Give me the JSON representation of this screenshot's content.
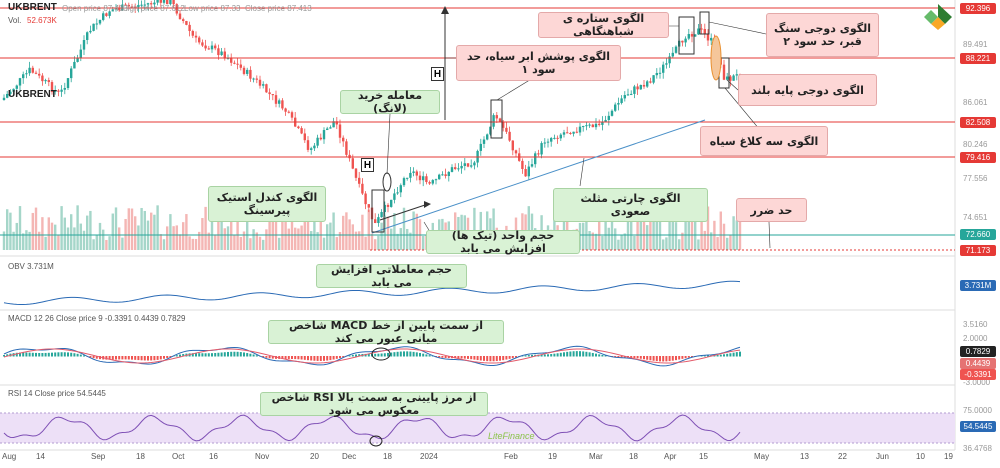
{
  "header": {
    "symbol": "UKBRENT",
    "open": "Open price  87.413",
    "high": "High price  87.612",
    "low": "Low price  87.33",
    "close": "Close price  87.413",
    "vol_label": "Vol.",
    "vol_value": "52.673K"
  },
  "price_axis": {
    "ticks": [
      "92.396",
      "89.491",
      "88.221",
      "86.061",
      "82.508",
      "80.246",
      "79.416",
      "77.556",
      "74.651",
      "72.660",
      "71.173"
    ],
    "highlight_tags": [
      {
        "text": "92.396",
        "color": "#e53935"
      },
      {
        "text": "88.221",
        "color": "#e53935"
      },
      {
        "text": "82.508",
        "color": "#e53935"
      },
      {
        "text": "79.416",
        "color": "#e53935"
      },
      {
        "text": "72.660",
        "color": "#26a69a"
      },
      {
        "text": "71.173",
        "color": "#e53935"
      }
    ]
  },
  "obv": {
    "label": "OBV 3.731M",
    "value_tag": "3.731M"
  },
  "macd": {
    "label": "MACD 12 26 Close price 9 -0.3391 0.4439 0.7829",
    "ticks": [
      "3.5160",
      "2.0000",
      "-1.5000",
      "-3.0000"
    ],
    "tags": [
      {
        "text": "0.7829",
        "color": "#222"
      },
      {
        "text": "0.4439",
        "color": "#e57373"
      },
      {
        "text": "-0.3391",
        "color": "#ef5350"
      }
    ]
  },
  "rsi": {
    "label": "RSI 14 Close price 54.5445",
    "ticks": [
      "75.0000",
      "50.0000",
      "36.4768"
    ],
    "tag": "54.5445"
  },
  "time_axis": [
    "Aug",
    "14",
    "Sep",
    "18",
    "Oct",
    "16",
    "Nov",
    "20",
    "Dec",
    "18",
    "2024",
    "Feb",
    "19",
    "Mar",
    "18",
    "Apr",
    "15",
    "May",
    "13",
    "22",
    "Jun",
    "10",
    "19"
  ],
  "markers": {
    "h1": "H",
    "h2": "H"
  },
  "annotations": {
    "shooting_star": "الگوی ستاره ی شباهنگاهی",
    "tombstone_doji": "الگوی دوجی سنگ قبر، حد سود ۲",
    "dark_cloud": "الگوی پوشش ابر سیاه، حد سود ۱",
    "long_legged_doji": "الگوی دوجی پایه بلند",
    "buy_trade": "معامله خرید (لانگ)",
    "three_crows": "الگوی سه کلاغ سیاه",
    "sticky_candle": "الگوی کندل استیک پیرسینگ",
    "ascending_triangle": "الگوی چارتی مثلث صعودی",
    "stop_loss": "حد ضرر",
    "tick_volume": "حجم واحد (تیک ها) افزایش می یابد",
    "obv_rising": "حجم معاملاتی افزایش می یابد",
    "macd_cross": "شاخص MACD از سمت پایین از خط میانی عبور می کند",
    "rsi_reverse": "شاخص RSI از مرز پایینی به سمت بالا معکوس می شود"
  },
  "colors": {
    "up": "#26a69a",
    "down": "#ef5350",
    "level": "#e53935",
    "trend": "#4a90c8",
    "ann_red": "#fdd7d6",
    "ann_green": "#d9f2d5",
    "rsi_band": "#ede0f7"
  },
  "watermark": "LiteFinance"
}
